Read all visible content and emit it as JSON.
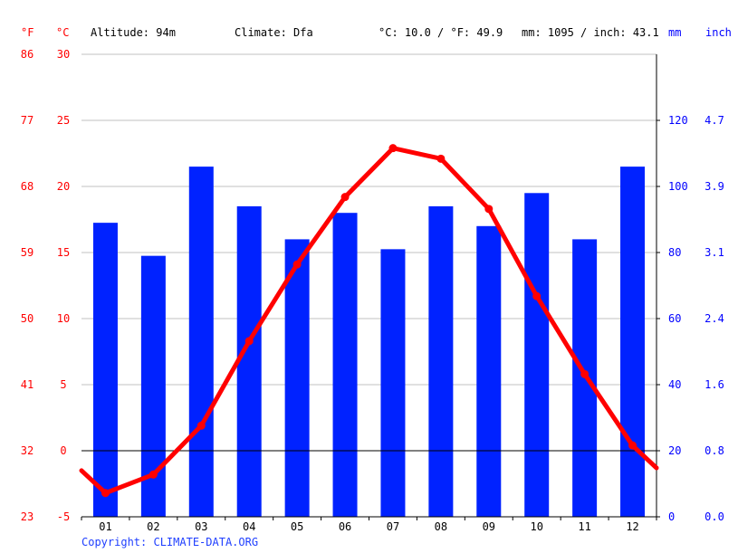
{
  "header": {
    "unit_f": "°F",
    "unit_c": "°C",
    "altitude": "Altitude: 94m",
    "climate": "Climate: Dfa",
    "temp_avg": "°C: 10.0 / °F: 49.9",
    "precip_total": "mm: 1095 / inch: 43.1",
    "unit_mm": "mm",
    "unit_inch": "inch"
  },
  "footer": {
    "copyright": "Copyright: CLIMATE-DATA.ORG"
  },
  "colors": {
    "temperature": "#ff0000",
    "precipitation": "#0022ff",
    "grid": "#c0c0c0",
    "zero_line": "#000000"
  },
  "chart_data": {
    "type": "bar+line",
    "categories": [
      "01",
      "02",
      "03",
      "04",
      "05",
      "06",
      "07",
      "08",
      "09",
      "10",
      "11",
      "12"
    ],
    "series": [
      {
        "name": "",
        "type": "bar",
        "axis": "right",
        "unit": "mm",
        "values": [
          89,
          79,
          106,
          94,
          84,
          92,
          81,
          94,
          88,
          98,
          84,
          106
        ]
      },
      {
        "name": "",
        "type": "line",
        "axis": "left",
        "unit": "°C",
        "values": [
          -3.2,
          -1.8,
          1.9,
          8.3,
          14.1,
          19.2,
          22.9,
          22.1,
          18.3,
          11.7,
          5.8,
          0.4
        ],
        "edge_start": -1.5,
        "edge_end": -1.3
      }
    ],
    "left_axis_c": {
      "ticks": [
        -5,
        0,
        5,
        10,
        15,
        20,
        25,
        30
      ],
      "range": [
        -5,
        30
      ]
    },
    "left_axis_f": {
      "ticks": [
        "23",
        "32",
        "41",
        "50",
        "59",
        "68",
        "77",
        "86"
      ]
    },
    "right_axis_mm": {
      "ticks": [
        0,
        20,
        40,
        60,
        80,
        100,
        120
      ],
      "range": [
        0,
        140
      ]
    },
    "right_axis_inch": {
      "ticks": [
        "0.0",
        "0.8",
        "1.6",
        "2.4",
        "3.1",
        "3.9",
        "4.7"
      ]
    },
    "grid": true,
    "zero_line": true
  }
}
